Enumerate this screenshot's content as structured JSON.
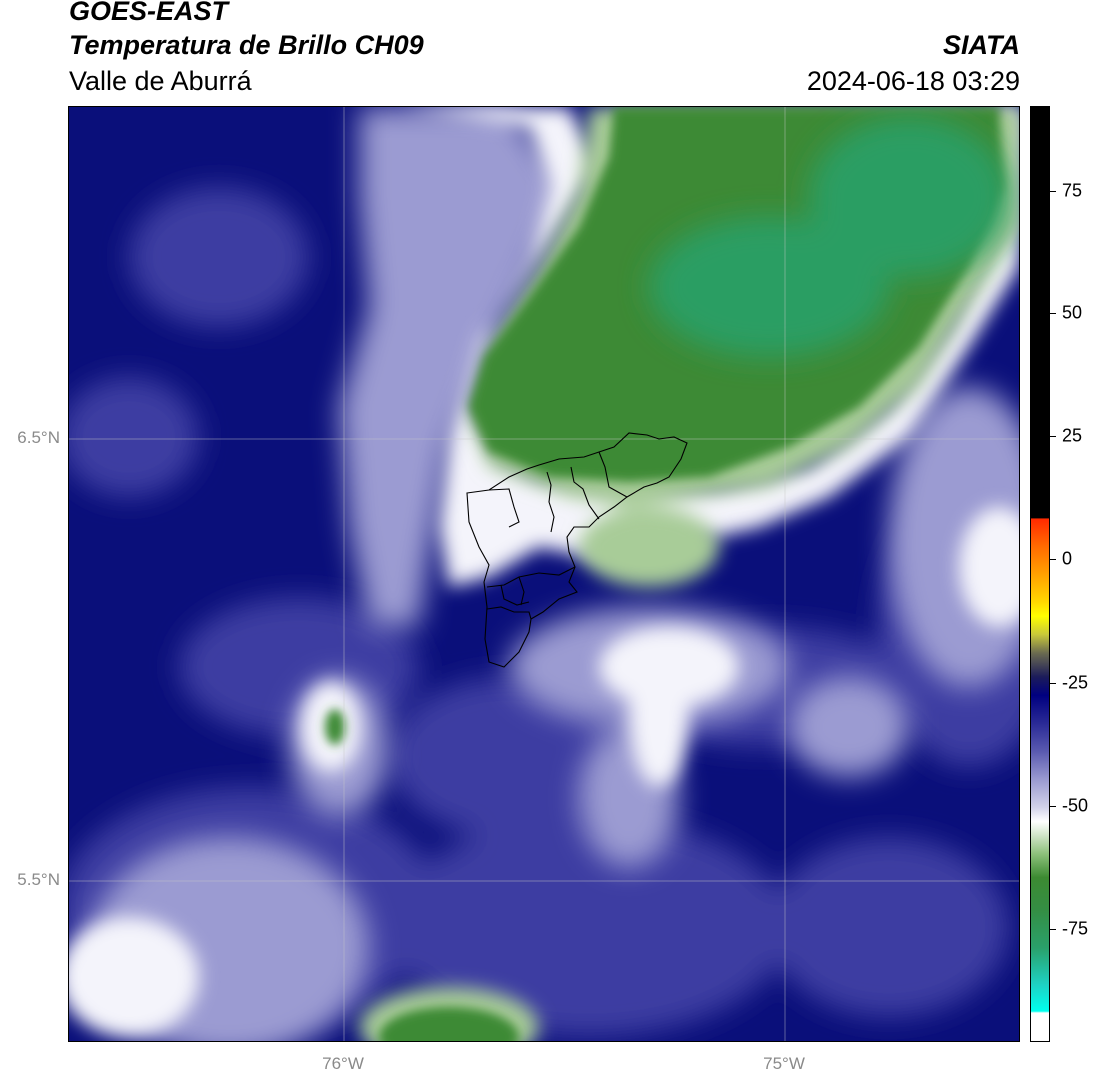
{
  "header": {
    "line1": "GOES-EAST",
    "line2": "Temperatura de Brillo CH09",
    "organization": "SIATA",
    "region": "Valle de Aburrá",
    "datetime": "2024-06-18 03:29"
  },
  "map": {
    "latitude_labels": [
      "6.5°N",
      "5.5°N"
    ],
    "longitude_labels": [
      "76°W",
      "75°W"
    ],
    "colors": {
      "dark_blue": "#0a0f7a",
      "mid_blue": "#3a3aa0",
      "light_blue": "#9a9ad0",
      "white": "#ffffff",
      "light_green": "#a8cc98",
      "green": "#3e8a34",
      "teal_green": "#2a9e64"
    }
  },
  "colorbar": {
    "tick_labels": [
      "75",
      "50",
      "25",
      "0",
      "-25",
      "-50",
      "-75"
    ]
  }
}
